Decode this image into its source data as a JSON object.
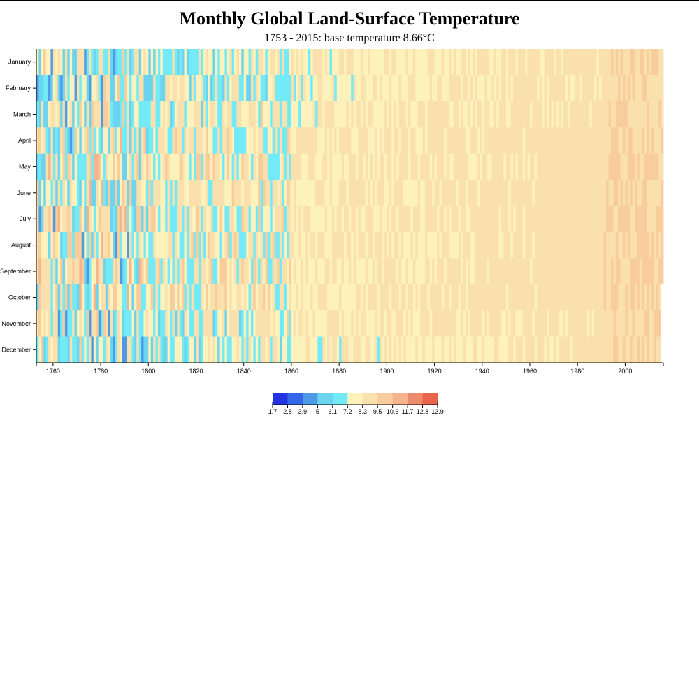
{
  "chart_data": {
    "type": "heatmap",
    "title": "Monthly Global Land-Surface Temperature",
    "subtitle": "1753 - 2015: base temperature 8.66°C",
    "base_temperature": 8.66,
    "x_range": [
      1753,
      2015
    ],
    "x_ticks": [
      "1760",
      "1780",
      "1800",
      "1820",
      "1840",
      "1860",
      "1880",
      "1900",
      "1920",
      "1940",
      "1960",
      "1980",
      "2000"
    ],
    "months": [
      "January",
      "February",
      "March",
      "April",
      "May",
      "June",
      "July",
      "August",
      "September",
      "October",
      "November",
      "December"
    ],
    "legend": {
      "thresholds": [
        "1.7",
        "2.8",
        "3.9",
        "5",
        "6.1",
        "7.2",
        "8.3",
        "9.5",
        "10.6",
        "11.7",
        "12.8",
        "13.9"
      ],
      "colors": [
        "#2332e3",
        "#3366e8",
        "#4d9be6",
        "#6cd4ef",
        "#72eaf7",
        "#fdf2bb",
        "#fae0ad",
        "#f8cc9b",
        "#f5b38e",
        "#ec8c6d",
        "#e9644c",
        "#e84a34"
      ]
    },
    "legend_placement": "bottom-center",
    "grid": false
  }
}
